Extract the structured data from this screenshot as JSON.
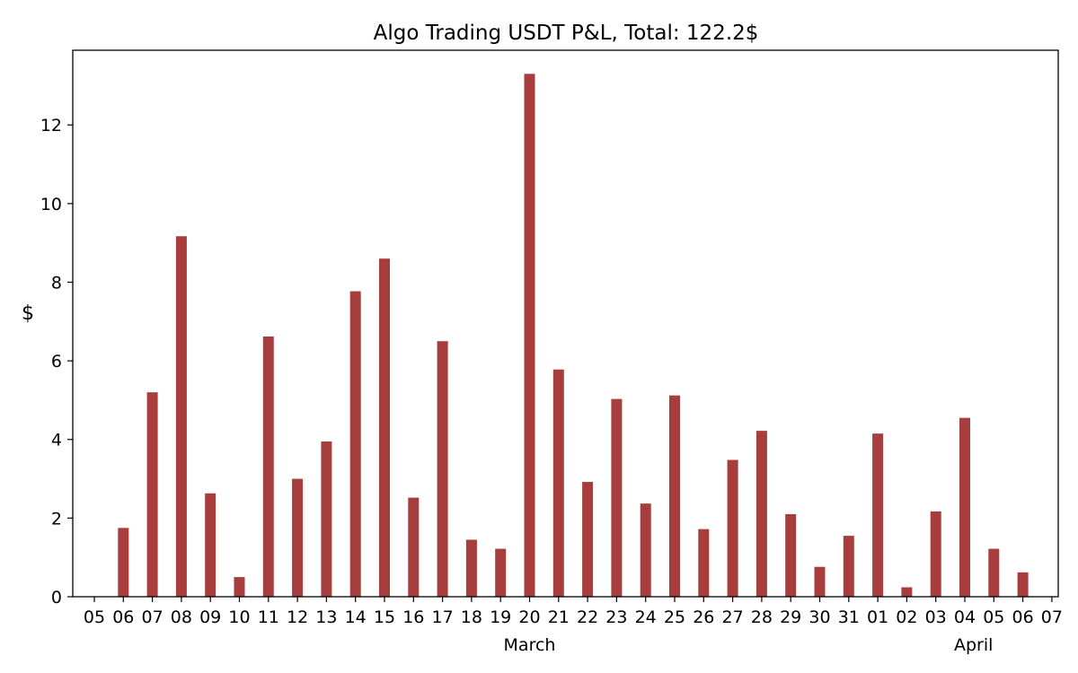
{
  "chart_data": {
    "type": "bar",
    "title": "Algo Trading USDT P&L, Total: 122.2$",
    "ylabel": "$",
    "ylim": [
      0,
      13.9
    ],
    "y_ticks": [
      0,
      2,
      4,
      6,
      8,
      10,
      12
    ],
    "x_tick_labels": [
      "05",
      "06",
      "07",
      "08",
      "09",
      "10",
      "11",
      "12",
      "13",
      "14",
      "15",
      "16",
      "17",
      "18",
      "19",
      "20",
      "21",
      "22",
      "23",
      "24",
      "25",
      "26",
      "27",
      "28",
      "29",
      "30",
      "31",
      "01",
      "02",
      "03",
      "04",
      "05",
      "06",
      "07"
    ],
    "month_labels": [
      {
        "label": "March",
        "tick_index": 15
      },
      {
        "label": "April",
        "tick_index": 30.3
      }
    ],
    "categories": [
      "2023-03-05",
      "2023-03-06",
      "2023-03-07",
      "2023-03-08",
      "2023-03-09",
      "2023-03-10",
      "2023-03-11",
      "2023-03-12",
      "2023-03-13",
      "2023-03-14",
      "2023-03-15",
      "2023-03-16",
      "2023-03-17",
      "2023-03-18",
      "2023-03-19",
      "2023-03-20",
      "2023-03-21",
      "2023-03-22",
      "2023-03-23",
      "2023-03-24",
      "2023-03-25",
      "2023-03-26",
      "2023-03-27",
      "2023-03-28",
      "2023-03-29",
      "2023-03-30",
      "2023-03-31",
      "2023-04-01",
      "2023-04-02",
      "2023-04-03",
      "2023-04-04",
      "2023-04-05",
      "2023-04-06",
      "2023-04-07"
    ],
    "values": [
      0,
      1.75,
      5.2,
      9.17,
      2.63,
      0.5,
      6.62,
      3.0,
      3.95,
      7.77,
      8.6,
      2.52,
      6.5,
      1.45,
      1.22,
      13.3,
      5.78,
      2.92,
      5.03,
      2.37,
      5.12,
      1.72,
      3.48,
      4.22,
      2.1,
      0.76,
      1.55,
      4.15,
      0.24,
      2.17,
      4.55,
      1.22,
      0.62,
      0
    ],
    "color": "#a83d3d",
    "grid": false
  }
}
